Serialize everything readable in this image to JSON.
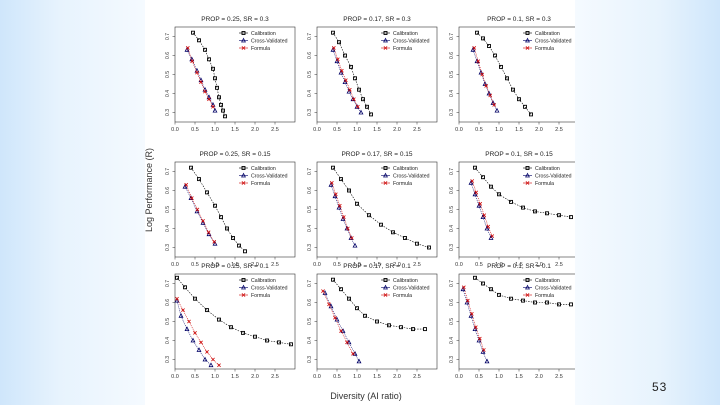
{
  "slide": {
    "page_number": "53",
    "figure_ylabel": "Log Performance (R)",
    "figure_xlabel": "Diversity (AI ratio)"
  },
  "colors": {
    "calibration": "#000000",
    "cross_validated": "#000066",
    "formula": "#cc0000",
    "axis": "#333333"
  },
  "chart_data": [
    {
      "type": "scatter",
      "title": "PROP = 0.25, SR = 0.3",
      "xlim": [
        0,
        3
      ],
      "ylim": [
        0.25,
        0.75
      ],
      "xticks": [
        "0.0",
        "0.5",
        "1.0",
        "1.5",
        "2.0",
        "2.5"
      ],
      "yticks": [
        "0.3",
        "0.4",
        "0.5",
        "0.6",
        "0.7"
      ],
      "legend": [
        "Calibration",
        "Cross-Validated",
        "Formula"
      ],
      "series": [
        {
          "name": "Calibration",
          "marker": "square",
          "x": [
            0.45,
            0.6,
            0.75,
            0.85,
            0.95,
            1.0,
            1.05,
            1.1,
            1.15,
            1.2,
            1.25
          ],
          "y": [
            0.72,
            0.68,
            0.63,
            0.58,
            0.53,
            0.48,
            0.43,
            0.38,
            0.34,
            0.31,
            0.28
          ]
        },
        {
          "name": "Cross-Validated",
          "marker": "triangle",
          "x": [
            0.3,
            0.42,
            0.55,
            0.65,
            0.75,
            0.85,
            0.95,
            1.0
          ],
          "y": [
            0.63,
            0.58,
            0.52,
            0.47,
            0.42,
            0.38,
            0.34,
            0.31
          ]
        },
        {
          "name": "Formula",
          "marker": "cross",
          "x": [
            0.32,
            0.43,
            0.55,
            0.65,
            0.75,
            0.85,
            0.95
          ],
          "y": [
            0.64,
            0.57,
            0.51,
            0.46,
            0.41,
            0.37,
            0.33
          ]
        }
      ]
    },
    {
      "type": "scatter",
      "title": "PROP = 0.17, SR = 0.3",
      "xlim": [
        0,
        3
      ],
      "ylim": [
        0.25,
        0.75
      ],
      "xticks": [
        "0.0",
        "0.5",
        "1.0",
        "1.5",
        "2.0",
        "2.5"
      ],
      "yticks": [
        "0.3",
        "0.4",
        "0.5",
        "0.6",
        "0.7"
      ],
      "legend": [
        "Calibration",
        "Cross-Validated",
        "Formula"
      ],
      "series": [
        {
          "name": "Calibration",
          "marker": "square",
          "x": [
            0.4,
            0.55,
            0.7,
            0.85,
            0.95,
            1.05,
            1.15,
            1.25,
            1.35
          ],
          "y": [
            0.72,
            0.67,
            0.6,
            0.54,
            0.48,
            0.42,
            0.37,
            0.33,
            0.29
          ]
        },
        {
          "name": "Cross-Validated",
          "marker": "triangle",
          "x": [
            0.4,
            0.5,
            0.6,
            0.7,
            0.8,
            0.9,
            1.0,
            1.1
          ],
          "y": [
            0.63,
            0.57,
            0.51,
            0.46,
            0.41,
            0.37,
            0.33,
            0.3
          ]
        },
        {
          "name": "Formula",
          "marker": "cross",
          "x": [
            0.42,
            0.52,
            0.62,
            0.72,
            0.82,
            0.92,
            1.02
          ],
          "y": [
            0.64,
            0.58,
            0.52,
            0.47,
            0.42,
            0.37,
            0.33
          ]
        }
      ]
    },
    {
      "type": "scatter",
      "title": "PROP = 0.1, SR = 0.3",
      "xlim": [
        0,
        3
      ],
      "ylim": [
        0.25,
        0.75
      ],
      "xticks": [
        "0.0",
        "0.5",
        "1.0",
        "1.5",
        "2.0",
        "2.5"
      ],
      "yticks": [
        "0.3",
        "0.4",
        "0.5",
        "0.6",
        "0.7"
      ],
      "legend": [
        "Calibration",
        "Cross-Validated",
        "Formula"
      ],
      "series": [
        {
          "name": "Calibration",
          "marker": "square",
          "x": [
            0.45,
            0.6,
            0.75,
            0.9,
            1.05,
            1.2,
            1.35,
            1.5,
            1.65,
            1.8
          ],
          "y": [
            0.72,
            0.69,
            0.65,
            0.6,
            0.54,
            0.48,
            0.42,
            0.37,
            0.33,
            0.29
          ]
        },
        {
          "name": "Cross-Validated",
          "marker": "triangle",
          "x": [
            0.35,
            0.45,
            0.55,
            0.65,
            0.75,
            0.85,
            0.95
          ],
          "y": [
            0.63,
            0.57,
            0.51,
            0.45,
            0.4,
            0.35,
            0.31
          ]
        },
        {
          "name": "Formula",
          "marker": "cross",
          "x": [
            0.38,
            0.48,
            0.58,
            0.68,
            0.78,
            0.88
          ],
          "y": [
            0.64,
            0.57,
            0.5,
            0.44,
            0.39,
            0.34
          ]
        }
      ]
    },
    {
      "type": "scatter",
      "title": "PROP = 0.25, SR = 0.15",
      "xlim": [
        0,
        3
      ],
      "ylim": [
        0.25,
        0.75
      ],
      "xticks": [
        "0.0",
        "0.5",
        "1.0",
        "1.5",
        "2.0",
        "2.5"
      ],
      "yticks": [
        "0.3",
        "0.4",
        "0.5",
        "0.6",
        "0.7"
      ],
      "legend": [
        "Calibration",
        "Cross-Validated",
        "Formula"
      ],
      "series": [
        {
          "name": "Calibration",
          "marker": "square",
          "x": [
            0.4,
            0.6,
            0.8,
            1.0,
            1.15,
            1.3,
            1.45,
            1.6,
            1.75
          ],
          "y": [
            0.72,
            0.66,
            0.59,
            0.52,
            0.46,
            0.4,
            0.35,
            0.31,
            0.28
          ]
        },
        {
          "name": "Cross-Validated",
          "marker": "triangle",
          "x": [
            0.25,
            0.4,
            0.55,
            0.7,
            0.85,
            1.0
          ],
          "y": [
            0.62,
            0.56,
            0.49,
            0.43,
            0.37,
            0.32
          ]
        },
        {
          "name": "Formula",
          "marker": "cross",
          "x": [
            0.28,
            0.42,
            0.56,
            0.7,
            0.84,
            0.98
          ],
          "y": [
            0.63,
            0.56,
            0.5,
            0.44,
            0.38,
            0.33
          ]
        }
      ]
    },
    {
      "type": "scatter",
      "title": "PROP = 0.17, SR = 0.15",
      "xlim": [
        0,
        3
      ],
      "ylim": [
        0.25,
        0.75
      ],
      "xticks": [
        "0.0",
        "0.5",
        "1.0",
        "1.5",
        "2.0",
        "2.5"
      ],
      "yticks": [
        "0.3",
        "0.4",
        "0.5",
        "0.6",
        "0.7"
      ],
      "legend": [
        "Calibration",
        "Cross-Validated",
        "Formula"
      ],
      "series": [
        {
          "name": "Calibration",
          "marker": "square",
          "x": [
            0.4,
            0.6,
            0.8,
            1.0,
            1.3,
            1.6,
            1.9,
            2.2,
            2.5,
            2.8
          ],
          "y": [
            0.72,
            0.66,
            0.6,
            0.53,
            0.47,
            0.42,
            0.38,
            0.35,
            0.32,
            0.3
          ]
        },
        {
          "name": "Cross-Validated",
          "marker": "triangle",
          "x": [
            0.35,
            0.45,
            0.55,
            0.65,
            0.75,
            0.85,
            0.95
          ],
          "y": [
            0.63,
            0.57,
            0.51,
            0.45,
            0.4,
            0.35,
            0.31
          ]
        },
        {
          "name": "Formula",
          "marker": "cross",
          "x": [
            0.37,
            0.47,
            0.57,
            0.67,
            0.77,
            0.87
          ],
          "y": [
            0.64,
            0.58,
            0.52,
            0.46,
            0.4,
            0.35
          ]
        }
      ]
    },
    {
      "type": "scatter",
      "title": "PROP = 0.1, SR = 0.15",
      "xlim": [
        0,
        3
      ],
      "ylim": [
        0.25,
        0.75
      ],
      "xticks": [
        "0.0",
        "0.5",
        "1.0",
        "1.5",
        "2.0",
        "2.5"
      ],
      "yticks": [
        "0.3",
        "0.4",
        "0.5",
        "0.6",
        "0.7"
      ],
      "legend": [
        "Calibration",
        "Cross-Validated",
        "Formula"
      ],
      "series": [
        {
          "name": "Calibration",
          "marker": "square",
          "x": [
            0.4,
            0.6,
            0.8,
            1.0,
            1.3,
            1.6,
            1.9,
            2.2,
            2.5,
            2.8
          ],
          "y": [
            0.72,
            0.67,
            0.62,
            0.58,
            0.54,
            0.51,
            0.49,
            0.48,
            0.47,
            0.46
          ]
        },
        {
          "name": "Cross-Validated",
          "marker": "triangle",
          "x": [
            0.3,
            0.4,
            0.5,
            0.6,
            0.7,
            0.8
          ],
          "y": [
            0.64,
            0.58,
            0.52,
            0.46,
            0.4,
            0.35
          ]
        },
        {
          "name": "Formula",
          "marker": "cross",
          "x": [
            0.33,
            0.43,
            0.53,
            0.63,
            0.73,
            0.83
          ],
          "y": [
            0.65,
            0.59,
            0.53,
            0.47,
            0.41,
            0.36
          ]
        }
      ]
    },
    {
      "type": "scatter",
      "title": "PROP = 0.25, SR = 0.1",
      "xlim": [
        0,
        3
      ],
      "ylim": [
        0.25,
        0.75
      ],
      "xticks": [
        "0.0",
        "0.5",
        "1.0",
        "1.5",
        "2.0",
        "2.5"
      ],
      "yticks": [
        "0.3",
        "0.4",
        "0.5",
        "0.6",
        "0.7"
      ],
      "legend": [
        "Calibration",
        "Cross-Validated",
        "Formula"
      ],
      "series": [
        {
          "name": "Calibration",
          "marker": "square",
          "x": [
            0.05,
            0.25,
            0.5,
            0.8,
            1.1,
            1.4,
            1.7,
            2.0,
            2.3,
            2.6,
            2.9
          ],
          "y": [
            0.73,
            0.68,
            0.62,
            0.56,
            0.51,
            0.47,
            0.44,
            0.42,
            0.4,
            0.39,
            0.38
          ]
        },
        {
          "name": "Cross-Validated",
          "marker": "triangle",
          "x": [
            0.05,
            0.15,
            0.3,
            0.45,
            0.6,
            0.75,
            0.9
          ],
          "y": [
            0.61,
            0.53,
            0.46,
            0.4,
            0.35,
            0.3,
            0.27
          ]
        },
        {
          "name": "Formula",
          "marker": "cross",
          "x": [
            0.05,
            0.2,
            0.35,
            0.5,
            0.65,
            0.8,
            0.95,
            1.1
          ],
          "y": [
            0.62,
            0.56,
            0.5,
            0.44,
            0.39,
            0.34,
            0.3,
            0.27
          ]
        }
      ]
    },
    {
      "type": "scatter",
      "title": "PROP = 0.17, SR = 0.1",
      "xlim": [
        0,
        3
      ],
      "ylim": [
        0.25,
        0.75
      ],
      "xticks": [
        "0.0",
        "0.5",
        "1.0",
        "1.5",
        "2.0",
        "2.5"
      ],
      "yticks": [
        "0.3",
        "0.4",
        "0.5",
        "0.6",
        "0.7"
      ],
      "legend": [
        "Calibration",
        "Cross-Validated",
        "Formula"
      ],
      "series": [
        {
          "name": "Calibration",
          "marker": "square",
          "x": [
            0.4,
            0.6,
            0.8,
            1.0,
            1.2,
            1.5,
            1.8,
            2.1,
            2.4,
            2.7
          ],
          "y": [
            0.72,
            0.67,
            0.62,
            0.57,
            0.53,
            0.5,
            0.48,
            0.47,
            0.46,
            0.46
          ]
        },
        {
          "name": "Cross-Validated",
          "marker": "triangle",
          "x": [
            0.2,
            0.35,
            0.5,
            0.65,
            0.8,
            0.95,
            1.05
          ],
          "y": [
            0.65,
            0.58,
            0.51,
            0.45,
            0.39,
            0.33,
            0.29
          ]
        },
        {
          "name": "Formula",
          "marker": "cross",
          "x": [
            0.15,
            0.3,
            0.45,
            0.6,
            0.75,
            0.9
          ],
          "y": [
            0.66,
            0.59,
            0.52,
            0.45,
            0.39,
            0.33
          ]
        }
      ]
    },
    {
      "type": "scatter",
      "title": "PROP = 0.1, SR = 0.1",
      "xlim": [
        0,
        3
      ],
      "ylim": [
        0.25,
        0.75
      ],
      "xticks": [
        "0.0",
        "0.5",
        "1.0",
        "1.5",
        "2.0",
        "2.5"
      ],
      "yticks": [
        "0.3",
        "0.4",
        "0.5",
        "0.6",
        "0.7"
      ],
      "legend": [
        "Calibration",
        "Cross-Validated",
        "Formula"
      ],
      "series": [
        {
          "name": "Calibration",
          "marker": "square",
          "x": [
            0.4,
            0.6,
            0.8,
            1.0,
            1.3,
            1.6,
            1.9,
            2.2,
            2.5,
            2.8
          ],
          "y": [
            0.73,
            0.7,
            0.67,
            0.64,
            0.62,
            0.61,
            0.6,
            0.6,
            0.59,
            0.59
          ]
        },
        {
          "name": "Cross-Validated",
          "marker": "triangle",
          "x": [
            0.1,
            0.2,
            0.3,
            0.4,
            0.5,
            0.6,
            0.7
          ],
          "y": [
            0.67,
            0.6,
            0.53,
            0.46,
            0.4,
            0.34,
            0.29
          ]
        },
        {
          "name": "Formula",
          "marker": "cross",
          "x": [
            0.12,
            0.22,
            0.32,
            0.42,
            0.52,
            0.62
          ],
          "y": [
            0.68,
            0.61,
            0.54,
            0.47,
            0.41,
            0.35
          ]
        }
      ]
    }
  ]
}
